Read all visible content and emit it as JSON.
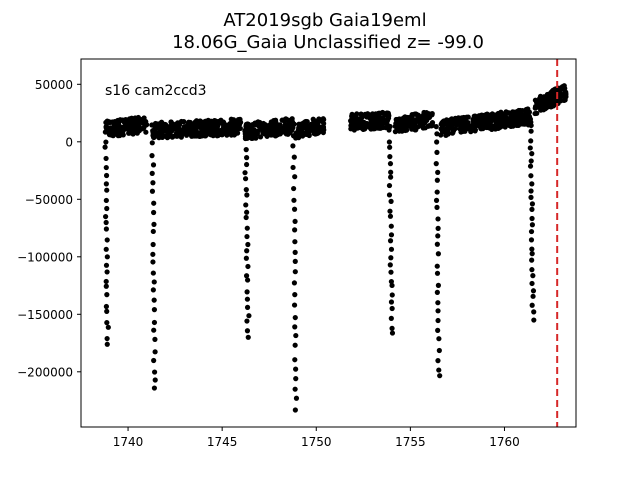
{
  "chart_data": {
    "type": "scatter",
    "title": "AT2019sgb  Gaia19eml",
    "subtitle": "18.06G_Gaia Unclassified z= -99.0",
    "xlabel": "",
    "ylabel": "",
    "annotation": "s16 cam2ccd3",
    "xlim": [
      1737.5,
      1763.8
    ],
    "ylim": [
      -248000,
      72000
    ],
    "xticks": [
      1740,
      1745,
      1750,
      1755,
      1760
    ],
    "xtick_labels": [
      "1740",
      "1745",
      "1750",
      "1755",
      "1760"
    ],
    "yticks": [
      50000,
      0,
      -50000,
      -100000,
      -150000,
      -200000
    ],
    "ytick_labels": [
      "50000",
      "0",
      "−50000",
      "−100000",
      "−150000",
      "−200000"
    ],
    "grid": false,
    "marker_color": "#000000",
    "vline": {
      "x": 1762.8,
      "color": "#d62728",
      "style": "dashed"
    },
    "baseline_segments": [
      {
        "x": [
          1738.8,
          1741.0
        ],
        "y": [
          11000,
          15000
        ]
      },
      {
        "x": [
          1741.3,
          1746.0
        ],
        "y": [
          10000,
          13000
        ]
      },
      {
        "x": [
          1746.2,
          1748.8
        ],
        "y": [
          9000,
          14000
        ]
      },
      {
        "x": [
          1748.9,
          1750.4
        ],
        "y": [
          10000,
          15000
        ]
      },
      {
        "x": [
          1751.8,
          1753.9
        ],
        "y": [
          17000,
          19000
        ]
      },
      {
        "x": [
          1754.2,
          1756.2
        ],
        "y": [
          14000,
          20000
        ]
      },
      {
        "x": [
          1756.6,
          1761.4
        ],
        "y": [
          12000,
          22000
        ]
      },
      {
        "x": [
          1761.6,
          1763.3
        ],
        "y": [
          30000,
          44000
        ]
      }
    ],
    "dips": [
      {
        "x": [
          1738.7,
          1739.0
        ],
        "ymin": -177000,
        "ymax": 15000
      },
      {
        "x": [
          1741.2,
          1741.5
        ],
        "ymin": -216000,
        "ymax": 15000
      },
      {
        "x": [
          1746.1,
          1746.5
        ],
        "ymin": -170000,
        "ymax": 15000
      },
      {
        "x": [
          1748.7,
          1749.0
        ],
        "ymin": -234000,
        "ymax": 15000
      },
      {
        "x": [
          1753.8,
          1754.1
        ],
        "ymin": -167000,
        "ymax": 15000
      },
      {
        "x": [
          1756.3,
          1756.6
        ],
        "ymin": -205000,
        "ymax": 15000
      },
      {
        "x": [
          1761.3,
          1761.6
        ],
        "ymin": -155000,
        "ymax": 15000
      }
    ]
  }
}
